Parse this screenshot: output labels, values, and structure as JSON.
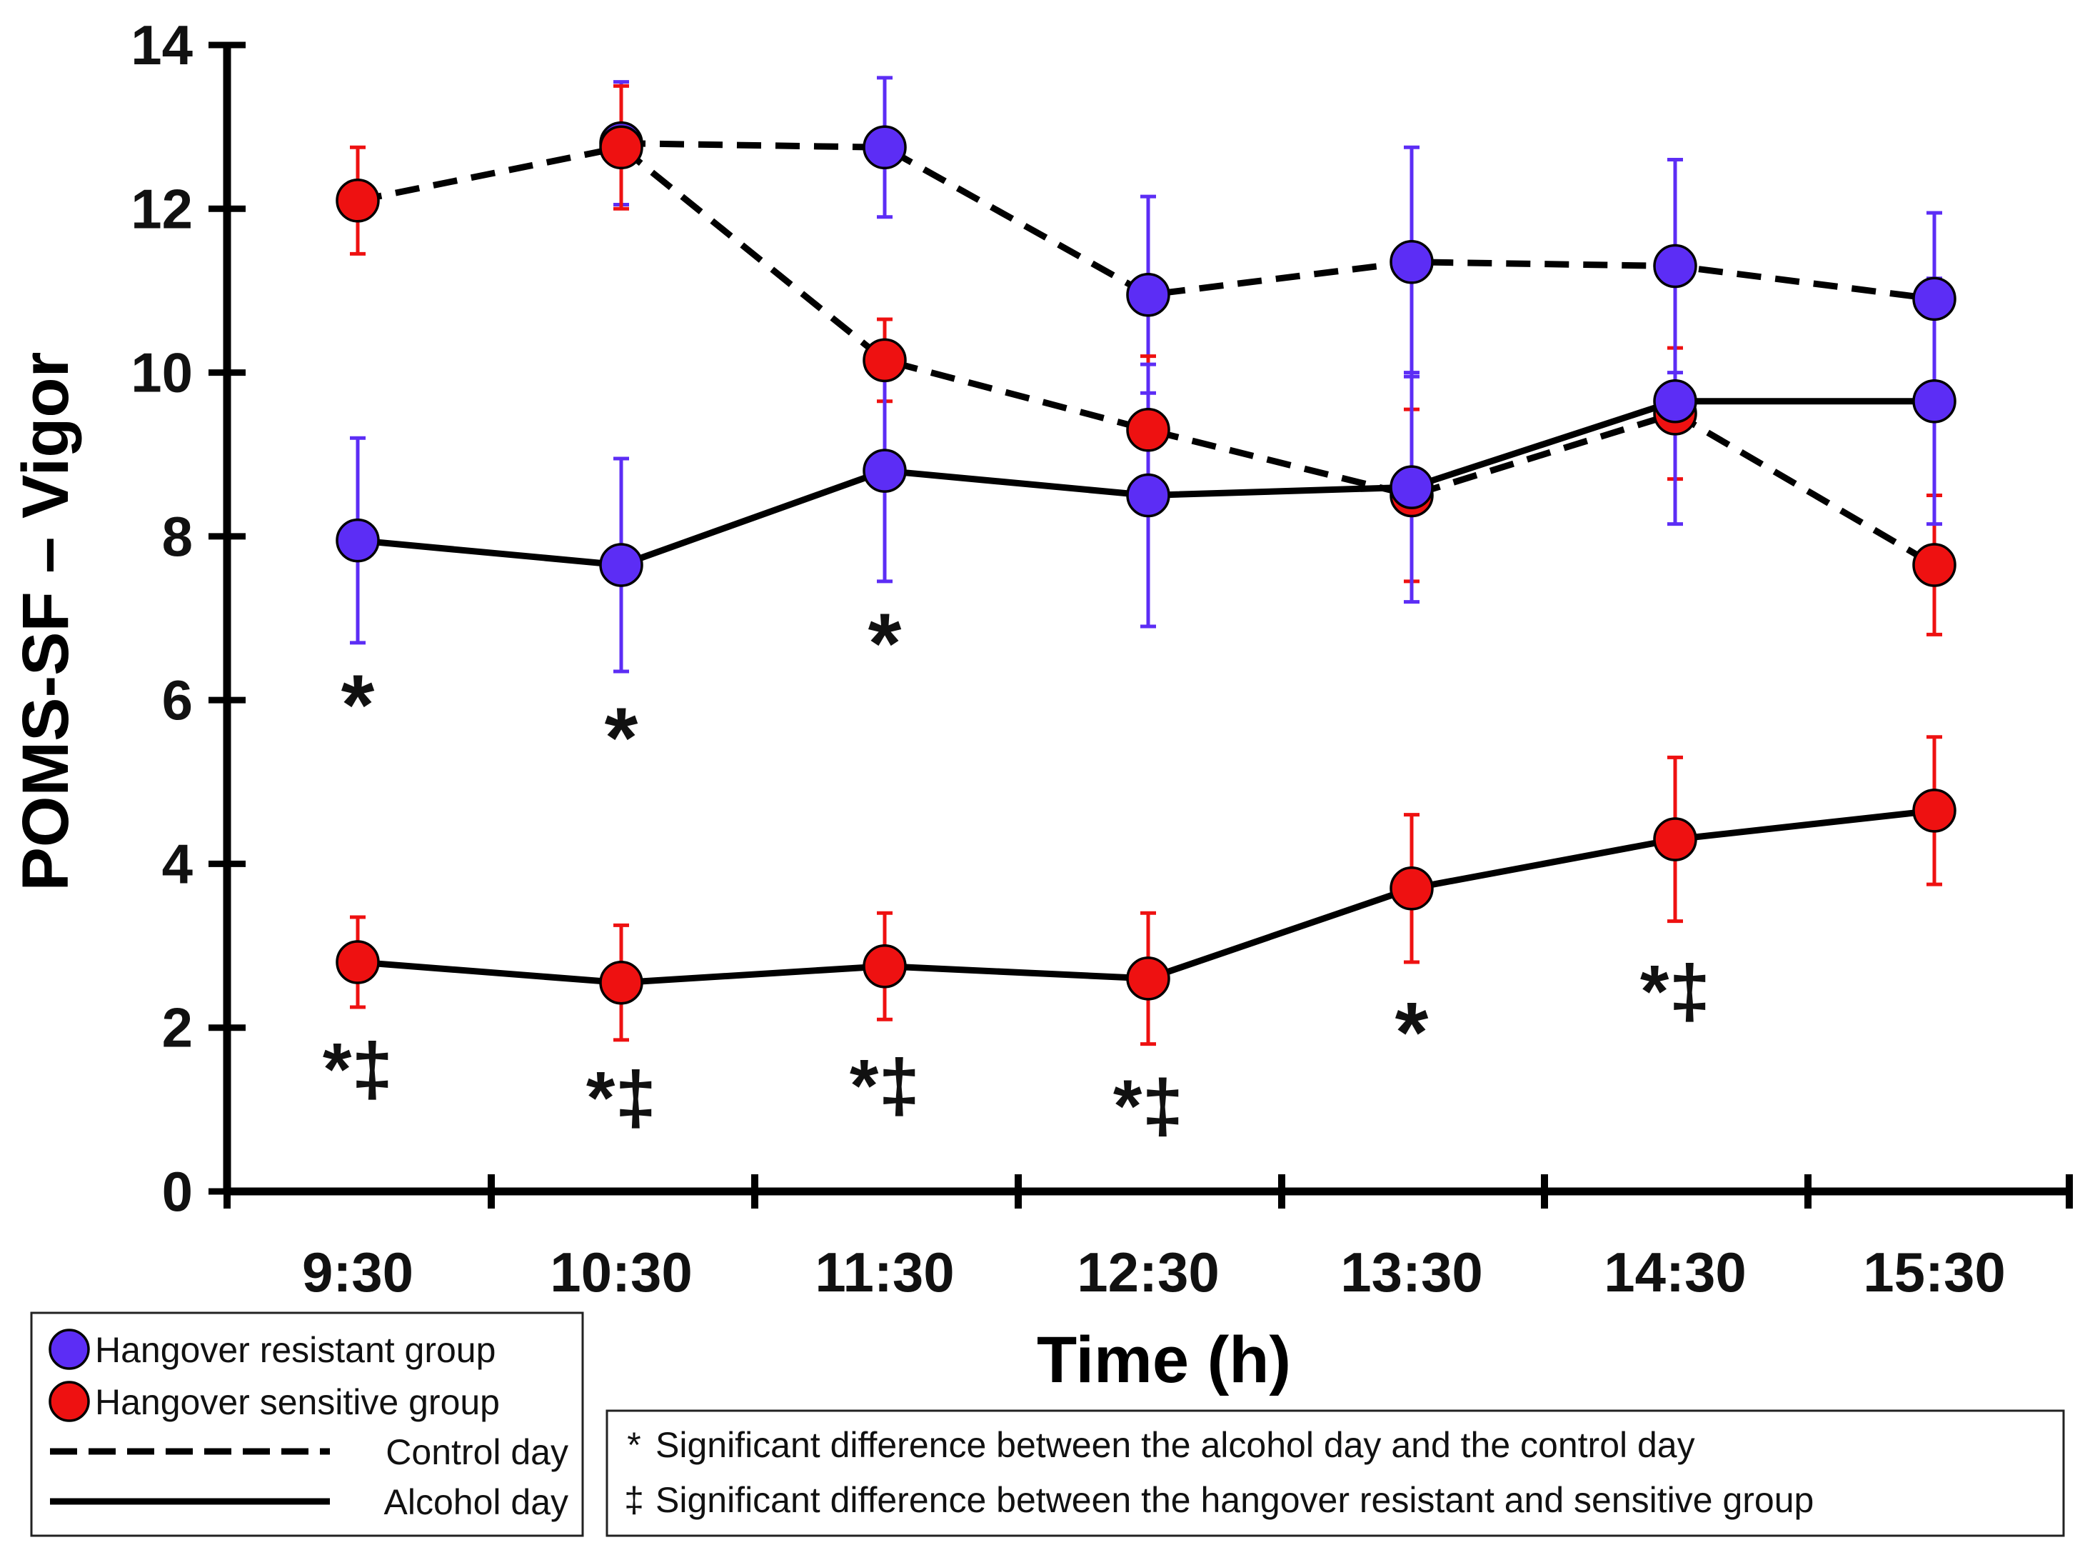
{
  "chart_data": {
    "type": "line",
    "title": "",
    "xlabel": "Time (h)",
    "ylabel": "POMS-SF – Vigor",
    "ylim": [
      0,
      14
    ],
    "yticks": [
      0,
      2,
      4,
      6,
      8,
      10,
      12,
      14
    ],
    "ytick_labels": [
      "0",
      "2",
      "4",
      "6",
      "8",
      "10",
      "12",
      "14"
    ],
    "categories": [
      "9:30",
      "10:30",
      "11:30",
      "12:30",
      "13:30",
      "14:30",
      "15:30"
    ],
    "colors": {
      "resistant": "#5c2df5",
      "sensitive": "#ee1111",
      "resistant_error": "#5c2df5",
      "sensitive_error": "#ee1111",
      "axis": "#000000"
    },
    "series": [
      {
        "name": "Hangover resistant group – Control day",
        "group": "resistant",
        "day": "control",
        "values": [
          null,
          12.8,
          12.75,
          10.95,
          11.35,
          11.3,
          10.9
        ],
        "error": [
          null,
          0.75,
          0.85,
          1.2,
          1.4,
          1.3,
          1.05
        ]
      },
      {
        "name": "Hangover sensitive group – Control day",
        "group": "sensitive",
        "day": "control",
        "values": [
          12.1,
          12.75,
          10.15,
          9.3,
          8.5,
          9.5,
          7.65
        ],
        "error": [
          0.65,
          0.75,
          0.5,
          0.9,
          1.05,
          0.8,
          0.85
        ]
      },
      {
        "name": "Hangover resistant group – Alcohol day",
        "group": "resistant",
        "day": "alcohol",
        "values": [
          7.95,
          7.65,
          8.8,
          8.5,
          8.6,
          9.65,
          9.65
        ],
        "error": [
          1.25,
          1.3,
          1.35,
          1.6,
          1.4,
          1.5,
          1.5
        ]
      },
      {
        "name": "Hangover sensitive group – Alcohol day",
        "group": "sensitive",
        "day": "alcohol",
        "values": [
          2.8,
          2.55,
          2.75,
          2.6,
          3.7,
          4.3,
          4.65
        ],
        "error": [
          0.55,
          0.7,
          0.65,
          0.8,
          0.9,
          1.0,
          0.9
        ]
      }
    ],
    "annotations": [
      {
        "category_index": 0,
        "y": 6.0,
        "text": "*",
        "size": "large"
      },
      {
        "category_index": 1,
        "y": 5.6,
        "text": "*",
        "size": "large"
      },
      {
        "category_index": 2,
        "y": 6.75,
        "text": "*",
        "size": "large"
      },
      {
        "category_index": 0,
        "y": 1.6,
        "text": "*‡",
        "size": "medium"
      },
      {
        "category_index": 1,
        "y": 1.25,
        "text": "*‡",
        "size": "medium"
      },
      {
        "category_index": 2,
        "y": 1.4,
        "text": "*‡",
        "size": "medium"
      },
      {
        "category_index": 3,
        "y": 1.15,
        "text": "*‡",
        "size": "medium"
      },
      {
        "category_index": 4,
        "y": 2.0,
        "text": "*",
        "size": "large"
      },
      {
        "category_index": 5,
        "y": 2.55,
        "text": "*‡",
        "size": "medium"
      }
    ],
    "legend": {
      "placement": "bottom-left",
      "items": [
        {
          "label": "Hangover resistant group",
          "kind": "marker",
          "group": "resistant"
        },
        {
          "label": "Hangover sensitive group",
          "kind": "marker",
          "group": "sensitive"
        },
        {
          "label": "Control day",
          "kind": "dashed"
        },
        {
          "label": "Alcohol day",
          "kind": "solid"
        }
      ]
    },
    "notes": {
      "placement": "bottom-right",
      "items": [
        {
          "symbol": "*",
          "text": "Significant difference between the alcohol day and the control day"
        },
        {
          "symbol": "‡",
          "text": "Significant difference between the hangover resistant and sensitive group"
        }
      ]
    }
  }
}
